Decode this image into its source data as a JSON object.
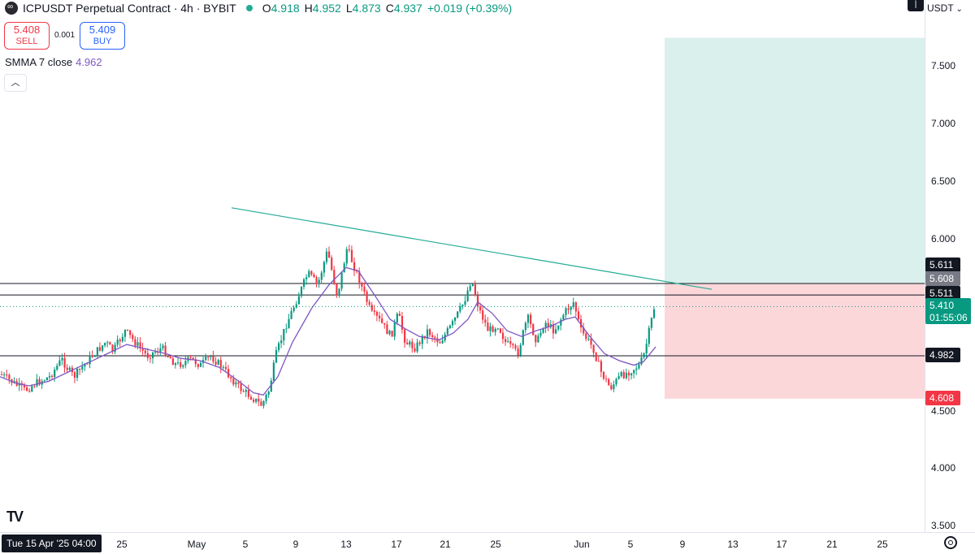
{
  "header": {
    "title": "ICPUSDT Perpetual Contract · 4h · BYBIT",
    "ohlc": [
      {
        "k": "O",
        "v": "4.918"
      },
      {
        "k": "H",
        "v": "4.952"
      },
      {
        "k": "L",
        "v": "4.873"
      },
      {
        "k": "C",
        "v": "4.937"
      }
    ],
    "change": "+0.019 (+0.39%)"
  },
  "trade": {
    "sell_price": "5.408",
    "sell_label": "SELL",
    "buy_price": "5.409",
    "buy_label": "BUY",
    "spread": "0.001"
  },
  "indicator": {
    "name": "SMMA 7 close",
    "value": "4.962"
  },
  "axis": {
    "currency": "USDT",
    "price_labels": [
      "7.500",
      "7.000",
      "6.500",
      "6.000",
      "4.500",
      "4.000",
      "3.500"
    ],
    "time_first": "Tue 15 Apr '25   04:00",
    "time_labels": [
      "25",
      "May",
      "5",
      "9",
      "13",
      "17",
      "21",
      "25",
      "Jun",
      "5",
      "9",
      "13",
      "17",
      "21",
      "25"
    ]
  },
  "tags": {
    "level_1": "5.611",
    "level_2": "5.608",
    "level_3": "5.511",
    "current_price": "5.410",
    "countdown": "01:55:06",
    "support": "4.982",
    "stop": "4.608"
  },
  "colors": {
    "up": "#089981",
    "down": "#f23645",
    "smma": "#7e57c2",
    "trendline": "#22ab94"
  },
  "chart_data": {
    "type": "candlestick",
    "price_scale": {
      "min": 3.5,
      "max": 7.75
    },
    "candle_path": [
      [
        4.82,
        0
      ],
      [
        4.72,
        0.07
      ],
      [
        4.68,
        0.1
      ],
      [
        4.74,
        0.14
      ],
      [
        4.76,
        0.16
      ],
      [
        4.8,
        0.2
      ],
      [
        4.95,
        0.25
      ],
      [
        4.85,
        0.28
      ],
      [
        4.8,
        0.3
      ],
      [
        4.95,
        0.36
      ],
      [
        5.1,
        0.43
      ],
      [
        5.02,
        0.46
      ],
      [
        5.2,
        0.51
      ],
      [
        5.1,
        0.55
      ],
      [
        4.98,
        0.6
      ],
      [
        5.05,
        0.66
      ],
      [
        4.9,
        0.72
      ],
      [
        4.95,
        0.78
      ],
      [
        4.9,
        0.82
      ],
      [
        4.98,
        0.86
      ],
      [
        4.9,
        0.9
      ],
      [
        4.8,
        0.94
      ],
      [
        4.7,
        0.98
      ],
      [
        4.62,
        1.03
      ],
      [
        4.55,
        1.07
      ],
      [
        4.68,
        1.1
      ],
      [
        5.0,
        1.13
      ],
      [
        5.25,
        1.17
      ],
      [
        5.4,
        1.2
      ],
      [
        5.7,
        1.26
      ],
      [
        5.6,
        1.3
      ],
      [
        5.9,
        1.34
      ],
      [
        5.5,
        1.38
      ],
      [
        5.92,
        1.42
      ],
      [
        5.7,
        1.46
      ],
      [
        5.35,
        1.52
      ],
      [
        5.3,
        1.55
      ],
      [
        5.15,
        1.6
      ],
      [
        5.35,
        1.63
      ],
      [
        5.1,
        1.66
      ],
      [
        5.05,
        1.7
      ],
      [
        5.2,
        1.75
      ],
      [
        5.1,
        1.8
      ],
      [
        5.25,
        1.85
      ],
      [
        5.45,
        1.9
      ],
      [
        5.65,
        1.93
      ],
      [
        5.4,
        1.96
      ],
      [
        5.2,
        2.0
      ],
      [
        5.25,
        2.04
      ],
      [
        5.1,
        2.07
      ],
      [
        5.0,
        2.12
      ],
      [
        5.32,
        2.16
      ],
      [
        5.1,
        2.2
      ],
      [
        5.28,
        2.23
      ],
      [
        5.2,
        2.27
      ],
      [
        5.35,
        2.31
      ],
      [
        5.45,
        2.35
      ],
      [
        5.2,
        2.38
      ],
      [
        5.05,
        2.43
      ],
      [
        4.85,
        2.46
      ],
      [
        4.7,
        2.5
      ],
      [
        4.8,
        2.54
      ],
      [
        4.85,
        2.58
      ],
      [
        4.9,
        2.62
      ],
      [
        5.0,
        2.64
      ],
      [
        5.3,
        2.67
      ],
      [
        5.5,
        2.69
      ]
    ],
    "smma_path": [
      [
        4.8,
        0
      ],
      [
        4.74,
        0.07
      ],
      [
        4.72,
        0.12
      ],
      [
        4.76,
        0.2
      ],
      [
        4.84,
        0.28
      ],
      [
        4.9,
        0.34
      ],
      [
        5.0,
        0.44
      ],
      [
        5.08,
        0.52
      ],
      [
        5.04,
        0.6
      ],
      [
        5.0,
        0.68
      ],
      [
        4.96,
        0.74
      ],
      [
        4.94,
        0.82
      ],
      [
        4.88,
        0.9
      ],
      [
        4.76,
        0.98
      ],
      [
        4.66,
        1.04
      ],
      [
        4.64,
        1.08
      ],
      [
        4.8,
        1.14
      ],
      [
        5.1,
        1.2
      ],
      [
        5.4,
        1.28
      ],
      [
        5.6,
        1.35
      ],
      [
        5.75,
        1.42
      ],
      [
        5.72,
        1.47
      ],
      [
        5.5,
        1.54
      ],
      [
        5.3,
        1.6
      ],
      [
        5.22,
        1.66
      ],
      [
        5.15,
        1.72
      ],
      [
        5.12,
        1.8
      ],
      [
        5.18,
        1.86
      ],
      [
        5.3,
        1.92
      ],
      [
        5.45,
        1.96
      ],
      [
        5.35,
        2.02
      ],
      [
        5.2,
        2.08
      ],
      [
        5.15,
        2.14
      ],
      [
        5.2,
        2.2
      ],
      [
        5.24,
        2.26
      ],
      [
        5.3,
        2.32
      ],
      [
        5.32,
        2.36
      ],
      [
        5.15,
        2.42
      ],
      [
        5.0,
        2.48
      ],
      [
        4.94,
        2.54
      ],
      [
        4.9,
        2.6
      ],
      [
        4.93,
        2.64
      ],
      [
        5.06,
        2.69
      ]
    ],
    "trendline": [
      [
        6.27,
        0.95
      ],
      [
        5.56,
        2.92
      ]
    ],
    "horizontal_lines": [
      5.611,
      5.511,
      4.982
    ],
    "current_price": 5.41,
    "position": {
      "entry": 5.611,
      "target": 7.75,
      "stop": 4.608
    }
  }
}
